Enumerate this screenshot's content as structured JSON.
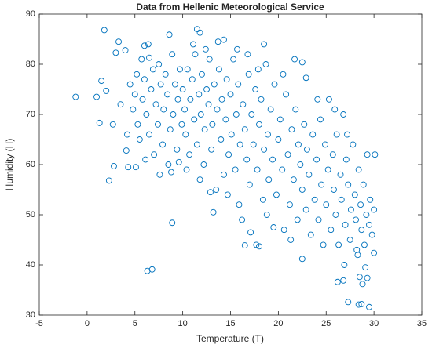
{
  "chart_data": {
    "type": "scatter",
    "title": "Data from Hellenic Meteorological Service",
    "x_label": "Temperature (T)",
    "y_label": "Humidity (H)",
    "xlim": [
      -5,
      35
    ],
    "xticks": [
      -5,
      0,
      5,
      10,
      15,
      20,
      25,
      30,
      35
    ],
    "ylim": [
      30,
      90
    ],
    "yticks": [
      30,
      40,
      50,
      60,
      70,
      80,
      90
    ],
    "color": "#0072bd",
    "x": [
      -1.2,
      1,
      1.5,
      1.8,
      2,
      1.3,
      2.3,
      2.7,
      2.8,
      3,
      3.3,
      3.5,
      4,
      4.1,
      4.3,
      6.3,
      6.8,
      8.9,
      16.5,
      17.7,
      18,
      22.5,
      27.3,
      28.4,
      28.7,
      29.5,
      29.3,
      30,
      28.5,
      26.2,
      26.8,
      28.8,
      8.6,
      11.5,
      11.8,
      14.3,
      22.5,
      22.9,
      18.5,
      6,
      6.5,
      4.5,
      4.8,
      5,
      5.2,
      5.3,
      5.5,
      5.7,
      5.8,
      6,
      6.2,
      6.4,
      6.5,
      6.7,
      6.9,
      7,
      7.2,
      7.4,
      7.5,
      7.7,
      7.9,
      8,
      8.2,
      8.4,
      8.5,
      8.7,
      8.9,
      9,
      9.2,
      9.4,
      9.5,
      9.7,
      9.9,
      4.2,
      5.1,
      6.1,
      7.6,
      8.8,
      9.6,
      10,
      10.2,
      10.3,
      10.5,
      10.7,
      10.8,
      11,
      11.2,
      11.3,
      11.5,
      11.7,
      11.9,
      12,
      12.2,
      12.3,
      12.5,
      12.7,
      12.8,
      13,
      13.1,
      13.3,
      13.5,
      13.6,
      13.8,
      14,
      14.1,
      14.3,
      14.5,
      14.6,
      14.8,
      15,
      15.1,
      15.3,
      15.5,
      15.6,
      15.8,
      16,
      10.4,
      11.8,
      13.2,
      12.9,
      14.7,
      15.9,
      16.2,
      11.1,
      12.4,
      13.7,
      15.7,
      16.3,
      16.5,
      16.7,
      16.9,
      17,
      17.2,
      17.4,
      17.6,
      17.8,
      18,
      18.2,
      18.4,
      18.5,
      18.7,
      18.9,
      19,
      19.2,
      19.4,
      19.6,
      19.8,
      20,
      20.2,
      20.4,
      20.6,
      20.8,
      21,
      21.2,
      21.4,
      21.6,
      21.8,
      22,
      22.1,
      17.1,
      18.8,
      19.5,
      21.3,
      16.8,
      17.9,
      20.5,
      21.7,
      22.3,
      22.5,
      22.7,
      22.9,
      23,
      23.2,
      23.4,
      23.6,
      23.8,
      24,
      24.2,
      24.4,
      24.5,
      24.7,
      24.9,
      25,
      25.2,
      25.3,
      25.5,
      25.7,
      25.8,
      26,
      26.1,
      26.3,
      26.5,
      26.6,
      26.8,
      27,
      27.1,
      27.3,
      27.5,
      27.6,
      27.8,
      28,
      28.1,
      28.3,
      28.4,
      28.6,
      28.7,
      28.9,
      29,
      29.2,
      29.3,
      29.5,
      29.6,
      29.8,
      30,
      30.1,
      27.2,
      25.9,
      24.1,
      26.9,
      29.1,
      28.2
    ],
    "values": [
      73.5,
      73.5,
      76.7,
      86.8,
      74.7,
      68.3,
      56.8,
      68,
      59.7,
      82.3,
      84.5,
      72,
      82.8,
      62.8,
      59.5,
      38.8,
      39.1,
      48.4,
      43.9,
      44,
      43.7,
      41.2,
      32.6,
      32.1,
      32.2,
      31.6,
      37.4,
      42.4,
      37.6,
      36.6,
      36.9,
      36.2,
      85.9,
      87,
      86.3,
      84.9,
      80.4,
      77.3,
      84,
      83.7,
      81.3,
      76,
      71,
      74,
      78,
      68,
      65,
      81,
      73,
      77,
      70,
      84,
      66,
      75,
      79,
      62,
      72,
      68,
      80,
      76,
      64,
      71,
      78,
      74,
      60,
      67,
      82,
      70,
      76,
      63,
      73,
      79,
      68,
      66,
      59.5,
      61,
      58,
      58.5,
      60.5,
      75,
      71,
      66,
      79,
      62,
      73,
      77,
      69,
      82,
      64,
      74,
      70,
      78,
      60,
      67,
      75,
      72,
      81,
      63,
      68,
      76,
      55,
      71,
      79,
      65,
      73,
      58,
      69,
      77,
      62,
      74,
      66,
      81,
      59,
      70,
      76,
      64,
      59,
      57,
      50.5,
      54.5,
      54,
      52,
      49,
      84,
      83,
      84.5,
      83,
      72,
      67,
      61,
      78,
      56,
      70,
      64,
      75,
      59,
      68,
      73,
      53,
      63,
      80,
      66,
      57,
      71,
      61,
      76,
      54,
      65,
      69,
      59,
      47,
      74,
      62,
      52,
      67,
      57,
      71,
      49,
      64,
      46.5,
      50,
      47.5,
      45,
      82,
      79,
      78,
      81,
      60,
      55,
      68,
      51,
      63,
      58,
      46,
      66,
      53,
      61,
      49,
      69,
      56,
      44,
      64,
      52,
      59,
      73,
      47,
      62,
      55,
      50,
      66,
      44,
      58,
      53,
      70,
      48,
      61,
      56,
      45,
      51,
      64,
      54,
      49,
      42,
      59,
      52,
      47,
      56,
      44,
      50,
      62,
      48,
      53,
      46,
      51,
      62,
      66,
      71,
      73,
      40,
      39.5,
      43
    ]
  }
}
